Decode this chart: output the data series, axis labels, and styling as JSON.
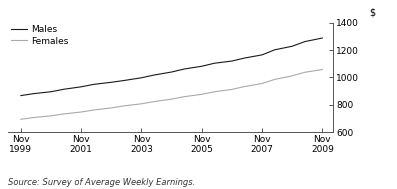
{
  "title": "",
  "source_text": "Source: Survey of Average Weekly Earnings.",
  "legend_entries": [
    "Males",
    "Females"
  ],
  "line_colors": [
    "#1a1a1a",
    "#aaaaaa"
  ],
  "x_tick_labels": [
    "Nov\n1999",
    "Nov\n2001",
    "Nov\n2003",
    "Nov\n2005",
    "Nov\n2007",
    "Nov\n2009"
  ],
  "x_tick_positions": [
    1999.83,
    2001.83,
    2003.83,
    2005.83,
    2007.83,
    2009.83
  ],
  "ylim": [
    600,
    1400
  ],
  "yticks": [
    600,
    800,
    1000,
    1200,
    1400
  ],
  "ylabel": "$",
  "males_x": [
    1999.83,
    2000.25,
    2000.83,
    2001.25,
    2001.83,
    2002.25,
    2002.83,
    2003.25,
    2003.83,
    2004.25,
    2004.83,
    2005.25,
    2005.83,
    2006.25,
    2006.83,
    2007.25,
    2007.83,
    2008.25,
    2008.83,
    2009.25,
    2009.83
  ],
  "males_y": [
    868,
    882,
    896,
    914,
    932,
    950,
    965,
    978,
    998,
    1018,
    1040,
    1062,
    1082,
    1104,
    1120,
    1142,
    1165,
    1202,
    1228,
    1262,
    1288
  ],
  "females_x": [
    1999.83,
    2000.25,
    2000.83,
    2001.25,
    2001.83,
    2002.25,
    2002.83,
    2003.25,
    2003.83,
    2004.25,
    2004.83,
    2005.25,
    2005.83,
    2006.25,
    2006.83,
    2007.25,
    2007.83,
    2008.25,
    2008.83,
    2009.25,
    2009.83
  ],
  "females_y": [
    695,
    708,
    720,
    734,
    748,
    763,
    778,
    793,
    808,
    824,
    842,
    860,
    877,
    896,
    913,
    934,
    956,
    986,
    1012,
    1038,
    1058
  ],
  "xlim": [
    1999.4,
    2010.2
  ],
  "background_color": "#ffffff",
  "font_size_legend": 6.5,
  "font_size_ticks": 6.5,
  "font_size_source": 6.0,
  "font_size_ylabel": 7.0,
  "line_width": 0.8
}
